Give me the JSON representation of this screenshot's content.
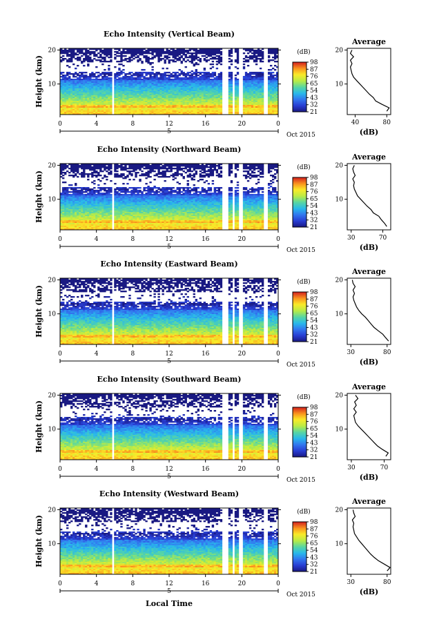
{
  "footer_label": "Local Time",
  "chart_data": [
    {
      "type": "heatmap",
      "title": "Echo Intensity (Vertical Beam)",
      "ylabel": "Height (km)",
      "y_ticks": [
        "20",
        "10"
      ],
      "x_ticks": [
        "0",
        "4",
        "8",
        "12",
        "16",
        "20",
        "0"
      ],
      "date_marker": "5",
      "date_label": "Oct 2015",
      "colorbar_unit": "(dB)",
      "colorbar_ticks": [
        "98",
        "87",
        "76",
        "65",
        "54",
        "43",
        "32",
        "21"
      ],
      "colorbar_range": [
        21,
        98
      ],
      "profile": {
        "title": "Average",
        "xlabel": "(dB)",
        "x_ticks": [
          "40",
          "80"
        ],
        "x_range": [
          30,
          85
        ],
        "y_ticks": [
          "20",
          "10"
        ],
        "height_km": [
          2,
          3,
          4,
          5,
          6,
          7,
          8,
          9,
          10,
          11,
          12,
          13,
          14,
          15,
          16,
          17,
          18,
          19,
          20
        ],
        "intensity_db": [
          80,
          83,
          74,
          66,
          63,
          58,
          54,
          50,
          46,
          42,
          38,
          36,
          35,
          34,
          36,
          34,
          38,
          34,
          36
        ]
      }
    },
    {
      "type": "heatmap",
      "title": "Echo Intensity (Northward Beam)",
      "ylabel": "Height (km)",
      "y_ticks": [
        "20",
        "10"
      ],
      "x_ticks": [
        "0",
        "4",
        "8",
        "12",
        "16",
        "20",
        "0"
      ],
      "date_marker": "5",
      "date_label": "Oct 2015",
      "colorbar_unit": "(dB)",
      "colorbar_ticks": [
        "98",
        "87",
        "76",
        "65",
        "54",
        "43",
        "32",
        "21"
      ],
      "colorbar_range": [
        21,
        98
      ],
      "profile": {
        "title": "Average",
        "xlabel": "(dB)",
        "x_ticks": [
          "30",
          "70"
        ],
        "x_range": [
          25,
          80
        ],
        "y_ticks": [
          "20",
          "10"
        ],
        "height_km": [
          2,
          3,
          4,
          5,
          6,
          7,
          8,
          9,
          10,
          11,
          12,
          13,
          14,
          15,
          16,
          17,
          18,
          19,
          20
        ],
        "intensity_db": [
          75,
          72,
          68,
          65,
          58,
          55,
          50,
          46,
          42,
          38,
          36,
          34,
          33,
          34,
          32,
          35,
          33,
          32,
          34
        ]
      }
    },
    {
      "type": "heatmap",
      "title": "Echo Intensity (Eastward Beam)",
      "ylabel": "Height (km)",
      "y_ticks": [
        "20",
        "10"
      ],
      "x_ticks": [
        "0",
        "4",
        "8",
        "12",
        "16",
        "20",
        "0"
      ],
      "date_marker": "5",
      "date_label": "Oct 2015",
      "colorbar_unit": "(dB)",
      "colorbar_ticks": [
        "98",
        "87",
        "76",
        "65",
        "54",
        "43",
        "32",
        "21"
      ],
      "colorbar_range": [
        21,
        98
      ],
      "profile": {
        "title": "Average",
        "xlabel": "(dB)",
        "x_ticks": [
          "30",
          "80"
        ],
        "x_range": [
          25,
          85
        ],
        "y_ticks": [
          "20",
          "10"
        ],
        "height_km": [
          2,
          3,
          4,
          5,
          6,
          7,
          8,
          9,
          10,
          11,
          12,
          13,
          14,
          15,
          16,
          17,
          18,
          19,
          20
        ],
        "intensity_db": [
          82,
          78,
          74,
          68,
          62,
          58,
          54,
          50,
          45,
          41,
          38,
          36,
          34,
          33,
          35,
          33,
          36,
          33,
          32
        ]
      }
    },
    {
      "type": "heatmap",
      "title": "Echo Intensity (Southward Beam)",
      "ylabel": "Height (km)",
      "y_ticks": [
        "20",
        "10"
      ],
      "x_ticks": [
        "0",
        "4",
        "8",
        "12",
        "16",
        "20",
        "0"
      ],
      "date_marker": "5",
      "date_label": "Oct 2015",
      "colorbar_unit": "(dB)",
      "colorbar_ticks": [
        "98",
        "87",
        "76",
        "65",
        "54",
        "43",
        "32",
        "21"
      ],
      "colorbar_range": [
        21,
        98
      ],
      "profile": {
        "title": "Average",
        "xlabel": "(dB)",
        "x_ticks": [
          "30",
          "70"
        ],
        "x_range": [
          25,
          78
        ],
        "y_ticks": [
          "20",
          "10"
        ],
        "height_km": [
          2,
          3,
          4,
          5,
          6,
          7,
          8,
          9,
          10,
          11,
          12,
          13,
          14,
          15,
          16,
          17,
          18,
          19,
          20
        ],
        "intensity_db": [
          72,
          75,
          68,
          62,
          58,
          54,
          50,
          46,
          42,
          38,
          35,
          34,
          33,
          36,
          33,
          36,
          34,
          38,
          35
        ]
      }
    },
    {
      "type": "heatmap",
      "title": "Echo Intensity (Westward Beam)",
      "ylabel": "Height (km)",
      "y_ticks": [
        "20",
        "10"
      ],
      "x_ticks": [
        "0",
        "4",
        "8",
        "12",
        "16",
        "20",
        "0"
      ],
      "date_marker": "5",
      "date_label": "Oct 2015",
      "colorbar_unit": "(dB)",
      "colorbar_ticks": [
        "98",
        "87",
        "76",
        "65",
        "54",
        "43",
        "32",
        "21"
      ],
      "colorbar_range": [
        21,
        98
      ],
      "profile": {
        "title": "Average",
        "xlabel": "(dB)",
        "x_ticks": [
          "30",
          "80"
        ],
        "x_range": [
          25,
          85
        ],
        "y_ticks": [
          "20",
          "10"
        ],
        "height_km": [
          2,
          3,
          4,
          5,
          6,
          7,
          8,
          9,
          10,
          11,
          12,
          13,
          14,
          15,
          16,
          17,
          18,
          19,
          20
        ],
        "intensity_db": [
          80,
          84,
          76,
          68,
          62,
          57,
          53,
          49,
          45,
          41,
          38,
          35,
          34,
          33,
          34,
          32,
          36,
          34,
          33
        ]
      }
    }
  ]
}
